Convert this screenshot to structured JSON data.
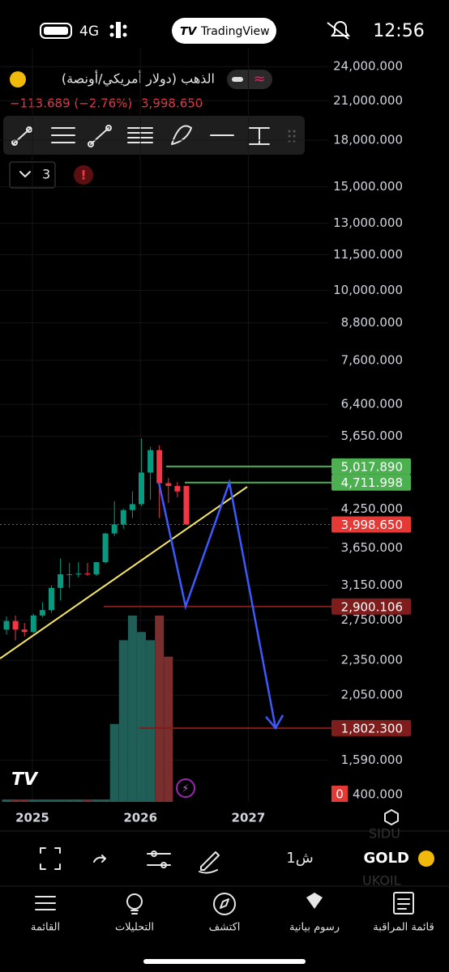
{
  "status_bar": {
    "network": "4G",
    "app": "TradingView",
    "time": "12:56"
  },
  "header": {
    "symbol_name": "الذهب (دولار أمريكي/أونصة)",
    "change": "−113.689 (−2.76%)",
    "price": "3,998.650"
  },
  "indicator_count": "3",
  "chart_data": {
    "type": "candlestick",
    "log_scale": true,
    "ylim": [
      1350,
      25750
    ],
    "yticks": [
      {
        "value": 24000,
        "label": "24,000.000"
      },
      {
        "value": 21000,
        "label": "21,000.000"
      },
      {
        "value": 18000,
        "label": "18,000.000"
      },
      {
        "value": 15000,
        "label": "15,000.000"
      },
      {
        "value": 13000,
        "label": "13,000.000"
      },
      {
        "value": 11500,
        "label": "11,500.000"
      },
      {
        "value": 10000,
        "label": "10,000.000"
      },
      {
        "value": 8800,
        "label": "8,800.000"
      },
      {
        "value": 7600,
        "label": "7,600.000"
      },
      {
        "value": 6400,
        "label": "6,400.000"
      },
      {
        "value": 5650,
        "label": "5,650.000"
      },
      {
        "value": 4250,
        "label": "4,250.000"
      },
      {
        "value": 3650,
        "label": "3,650.000"
      },
      {
        "value": 3150,
        "label": "3,150.000"
      },
      {
        "value": 2750,
        "label": "2,750.000"
      },
      {
        "value": 2350,
        "label": "2,350.000"
      },
      {
        "value": 2050,
        "label": "2,050.000"
      },
      {
        "value": 1590,
        "label": "1,590.000"
      }
    ],
    "xlim": [
      2024.7,
      2027.74
    ],
    "xticks": [
      2025,
      2026,
      2027
    ],
    "up_color": "#089981",
    "down_color": "#f23645",
    "volume_up_color": "#1f5f57",
    "volume_down_color": "#7a2e2e",
    "candles": [
      {
        "o": 2650,
        "h": 2790,
        "l": 2600,
        "c": 2740
      },
      {
        "o": 2740,
        "h": 2800,
        "l": 2540,
        "c": 2650
      },
      {
        "o": 2650,
        "h": 2720,
        "l": 2580,
        "c": 2625
      },
      {
        "o": 2625,
        "h": 2820,
        "l": 2610,
        "c": 2800
      },
      {
        "o": 2800,
        "h": 2950,
        "l": 2780,
        "c": 2860
      },
      {
        "o": 2860,
        "h": 3150,
        "l": 2830,
        "c": 3120
      },
      {
        "o": 3120,
        "h": 3500,
        "l": 2970,
        "c": 3290
      },
      {
        "o": 3290,
        "h": 3440,
        "l": 3120,
        "c": 3290
      },
      {
        "o": 3290,
        "h": 3450,
        "l": 3250,
        "c": 3300
      },
      {
        "o": 3300,
        "h": 3440,
        "l": 3270,
        "c": 3290
      },
      {
        "o": 3290,
        "h": 3450,
        "l": 3270,
        "c": 3450
      },
      {
        "o": 3450,
        "h": 3870,
        "l": 3430,
        "c": 3860
      },
      {
        "o": 3860,
        "h": 4380,
        "l": 3820,
        "c": 4000
      },
      {
        "o": 4000,
        "h": 4250,
        "l": 3930,
        "c": 4230
      },
      {
        "o": 4230,
        "h": 4550,
        "l": 4100,
        "c": 4330
      },
      {
        "o": 4330,
        "h": 5600,
        "l": 4300,
        "c": 4900
      },
      {
        "o": 4900,
        "h": 5420,
        "l": 4400,
        "c": 5350
      },
      {
        "o": 5350,
        "h": 5450,
        "l": 4100,
        "c": 4700
      },
      {
        "o": 4700,
        "h": 4800,
        "l": 4350,
        "c": 4650
      },
      {
        "o": 4650,
        "h": 4720,
        "l": 4450,
        "c": 4550
      },
      {
        "o": 4650,
        "h": 4650,
        "l": 3990,
        "c": 3998.65
      }
    ],
    "volumes": [
      3,
      3,
      3,
      3,
      3,
      3,
      3,
      3,
      3,
      3,
      3,
      3,
      95,
      197,
      227,
      207,
      197,
      227,
      177,
      null,
      null
    ],
    "levels": [
      {
        "value": 5017.89,
        "label": "5,017.890",
        "color": "#4caf50"
      },
      {
        "value": 4711.998,
        "label": "4,711.998",
        "color": "#4caf50"
      },
      {
        "value": 3998.65,
        "label": "3,998.650",
        "color": "#e53935"
      },
      {
        "value": 2900.106,
        "label": "2,900.106",
        "color": "#7f1d1d"
      },
      {
        "value": 1802.3,
        "label": "1,802.300",
        "color": "#7f1d1d"
      }
    ],
    "volume_axis_label": "0",
    "bottom_label": "400.000"
  },
  "toolbar": {
    "interval": "1ش",
    "symbol": "GOLD",
    "ghost_1": "SIDU",
    "ghost_2": "UKOIL"
  },
  "nav": [
    "القائمة",
    "التحليلات",
    "اكتشف",
    "رسوم بيانية",
    "قائمة المراقبة"
  ]
}
